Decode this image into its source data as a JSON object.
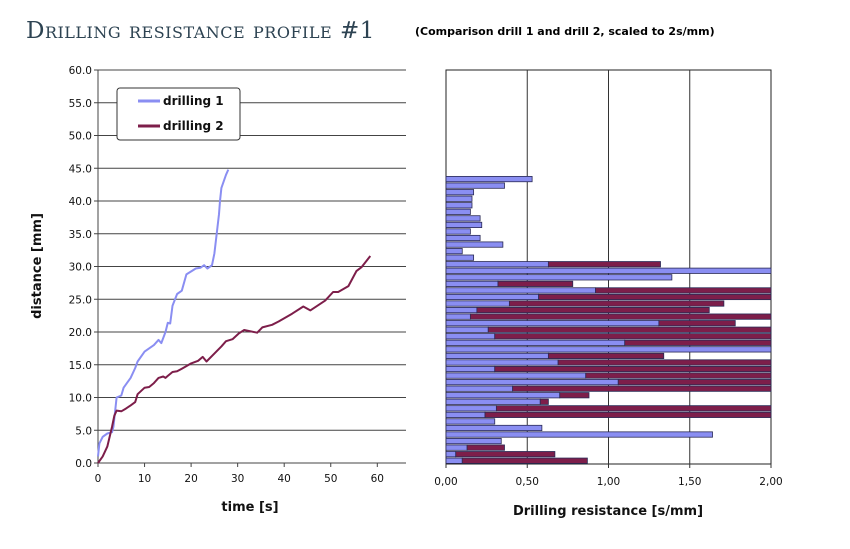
{
  "title": "Drilling resistance profile #1",
  "subtitle": "(Comparison drill 1 and drill 2, scaled to 2s/mm)",
  "colors": {
    "drilling1": "#8a8ef2",
    "drilling2": "#7d1e4a",
    "bar_border": "#2a2a55",
    "title": "#2d4352"
  },
  "chart_data": [
    {
      "type": "line",
      "xlabel": "time [s]",
      "ylabel": "distance [mm]",
      "xlim": [
        0,
        66
      ],
      "ylim": [
        0,
        60
      ],
      "x_ticks": [
        "0",
        "10",
        "20",
        "30",
        "40",
        "50",
        "60"
      ],
      "y_ticks": [
        "0.0",
        "5.0",
        "10.0",
        "15.0",
        "20.0",
        "25.0",
        "30.0",
        "35.0",
        "40.0",
        "45.0",
        "50.0",
        "55.0",
        "60.0"
      ],
      "grid": "horizontal",
      "legend_position": "top-left",
      "series": [
        {
          "name": "drilling 1",
          "points": [
            [
              0,
              1
            ],
            [
              0.3,
              3
            ],
            [
              1,
              4
            ],
            [
              2,
              4.5
            ],
            [
              3,
              4.7
            ],
            [
              3.3,
              5.5
            ],
            [
              3.7,
              8
            ],
            [
              4,
              10
            ],
            [
              5,
              10.3
            ],
            [
              5.5,
              11.5
            ],
            [
              7,
              13
            ],
            [
              8,
              14.5
            ],
            [
              8.5,
              15.5
            ],
            [
              10,
              17
            ],
            [
              12,
              18
            ],
            [
              13,
              18.8
            ],
            [
              13.6,
              18.3
            ],
            [
              14.5,
              20
            ],
            [
              15,
              21.4
            ],
            [
              15.5,
              21.3
            ],
            [
              16,
              24
            ],
            [
              17,
              25.8
            ],
            [
              18,
              26.3
            ],
            [
              19,
              28.8
            ],
            [
              21,
              29.7
            ],
            [
              22,
              29.8
            ],
            [
              22.8,
              30.2
            ],
            [
              23.5,
              29.7
            ],
            [
              24.5,
              30.2
            ],
            [
              25,
              32
            ],
            [
              25.5,
              35
            ],
            [
              26,
              38
            ],
            [
              26.2,
              40
            ],
            [
              26.5,
              42
            ],
            [
              27.5,
              44
            ],
            [
              28,
              44.8
            ]
          ]
        },
        {
          "name": "drilling 2",
          "points": [
            [
              0,
              0
            ],
            [
              1,
              1
            ],
            [
              2,
              2.5
            ],
            [
              3,
              5.5
            ],
            [
              3.5,
              7.2
            ],
            [
              4,
              8
            ],
            [
              5,
              7.9
            ],
            [
              6,
              8.3
            ],
            [
              7,
              8.8
            ],
            [
              8,
              9.3
            ],
            [
              8.5,
              10.5
            ],
            [
              10,
              11.5
            ],
            [
              11,
              11.6
            ],
            [
              12,
              12.2
            ],
            [
              13,
              13
            ],
            [
              14,
              13.2
            ],
            [
              14.5,
              13
            ],
            [
              15,
              13.3
            ],
            [
              16,
              13.9
            ],
            [
              17,
              14
            ],
            [
              18,
              14.4
            ],
            [
              19,
              14.8
            ],
            [
              20,
              15.2
            ],
            [
              21.5,
              15.6
            ],
            [
              22.5,
              16.2
            ],
            [
              23.3,
              15.5
            ],
            [
              24.7,
              16.5
            ],
            [
              26.5,
              17.8
            ],
            [
              27.5,
              18.6
            ],
            [
              28.9,
              18.9
            ],
            [
              30.3,
              19.8
            ],
            [
              31.4,
              20.3
            ],
            [
              34.2,
              19.9
            ],
            [
              35.3,
              20.7
            ],
            [
              37.4,
              21.1
            ],
            [
              38.8,
              21.6
            ],
            [
              41.7,
              22.8
            ],
            [
              44.1,
              23.9
            ],
            [
              45.6,
              23.3
            ],
            [
              48.8,
              24.8
            ],
            [
              50.5,
              26.1
            ],
            [
              51.6,
              26.1
            ],
            [
              53.8,
              27
            ],
            [
              55.5,
              29.3
            ],
            [
              56.6,
              29.9
            ],
            [
              58.5,
              31.6
            ]
          ]
        }
      ]
    },
    {
      "type": "bar",
      "orientation": "horizontal-stacked",
      "xlabel": "Drilling resistance [s/mm]",
      "xlim": [
        0,
        2
      ],
      "x_ticks": [
        "0,00",
        "0,50",
        "1,00",
        "1,50",
        "2,00"
      ],
      "grid": "vertical",
      "categories_note": "distance rows 0-44 mm bottom to top",
      "series": [
        {
          "name": "drilling 1",
          "values": [
            0.1,
            0.06,
            0.13,
            0.34,
            1.64,
            0.59,
            0.3,
            0.24,
            0.31,
            0.58,
            0.7,
            0.41,
            1.06,
            0.86,
            0.3,
            0.69,
            0.63,
            2.0,
            1.1,
            0.3,
            0.26,
            1.31,
            0.15,
            0.19,
            0.39,
            0.57,
            0.92,
            0.32,
            1.39,
            2.0,
            0.63,
            0.17,
            0.1,
            0.35,
            0.21,
            0.15,
            0.22,
            0.21,
            0.15,
            0.16,
            0.16,
            0.17,
            0.36,
            0.53
          ]
        },
        {
          "name": "drilling 2",
          "values": [
            0.77,
            0.61,
            0.23,
            0,
            0,
            0,
            0,
            1.76,
            1.69,
            0.05,
            0.18,
            1.59,
            0.94,
            1.14,
            1.7,
            1.31,
            0.71,
            0,
            0.9,
            1.7,
            1.74,
            0.47,
            1.85,
            1.43,
            1.32,
            1.43,
            1.08,
            0.46,
            0,
            0,
            0.69,
            0,
            0,
            0,
            0,
            0,
            0,
            0,
            0,
            0,
            0,
            0,
            0,
            0
          ]
        }
      ]
    }
  ]
}
